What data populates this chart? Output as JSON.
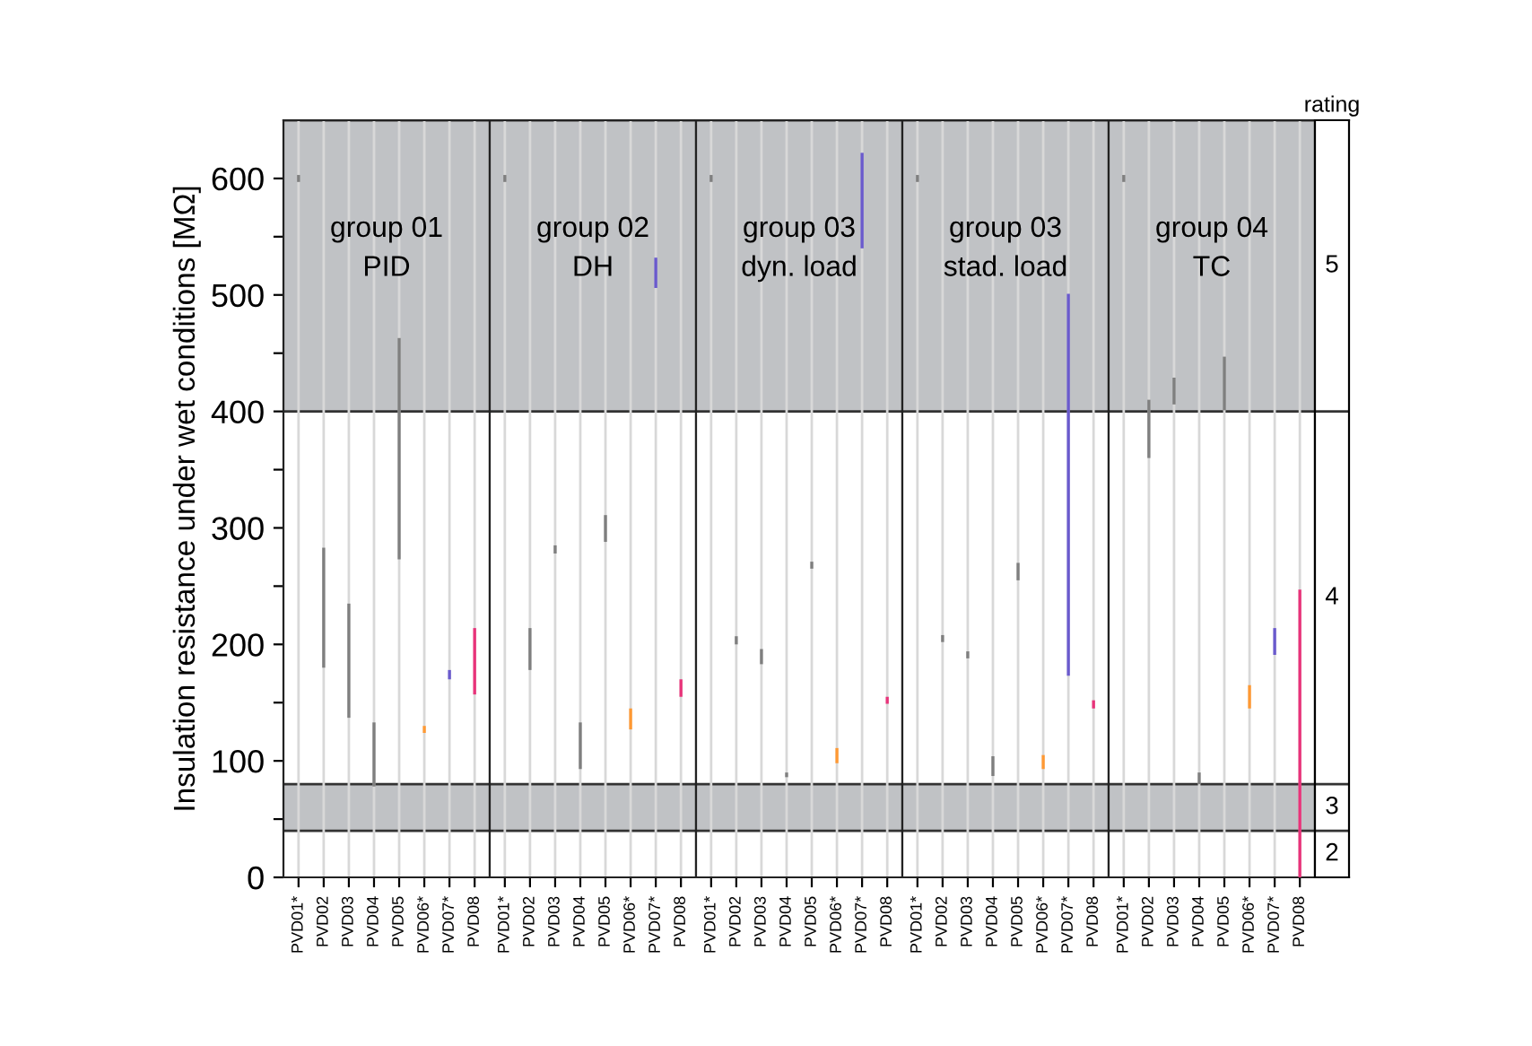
{
  "chart_data": [
    {
      "type": "bar",
      "title": "group 01\nPID",
      "ylabel": "Insulation resistance under wet conditions [MΩ]",
      "categories": [
        "PVD01*",
        "PVD02",
        "PVD03",
        "PVD04",
        "PVD05",
        "PVD06*",
        "PVD07*",
        "PVD08"
      ],
      "base": [
        597,
        180,
        137,
        78,
        273,
        124,
        170,
        157
      ],
      "values": [
        6,
        103,
        98,
        55,
        190,
        6,
        8,
        57
      ],
      "colors": [
        "#7f7f7f",
        "#7f7f7f",
        "#7f7f7f",
        "#7f7f7f",
        "#7f7f7f",
        "#ff9933",
        "#6a5acd",
        "#e8337a"
      ],
      "ylim": [
        0,
        650
      ],
      "yticks": [
        0,
        {
          "value": 50,
          "label": null
        },
        100,
        {
          "value": 150,
          "label": null
        },
        200,
        {
          "value": 250,
          "label": null
        },
        300,
        {
          "value": 350,
          "label": null
        },
        400,
        {
          "value": 450,
          "label": null
        },
        500,
        {
          "value": 550,
          "label": null
        },
        600
      ],
      "grid": "x",
      "bands": [
        {
          "axis": "y",
          "from": 40,
          "to": 80,
          "color": "#c0c2c5"
        },
        {
          "axis": "y",
          "from": 400,
          "to": 650,
          "color": "#c0c2c5"
        }
      ]
    },
    {
      "type": "bar",
      "title": "group 02\nDH",
      "categories": [
        "PVD01*",
        "PVD02",
        "PVD03",
        "PVD04",
        "PVD05",
        "PVD06*",
        "PVD07*",
        "PVD08"
      ],
      "base": [
        597,
        178,
        278,
        93,
        288,
        127,
        506,
        155
      ],
      "values": [
        6,
        36,
        7,
        40,
        23,
        18,
        26,
        15
      ],
      "colors": [
        "#7f7f7f",
        "#7f7f7f",
        "#7f7f7f",
        "#7f7f7f",
        "#7f7f7f",
        "#ff9933",
        "#6a5acd",
        "#e8337a"
      ],
      "ylim": [
        0,
        650
      ],
      "tick_labels": "x",
      "grid": "x",
      "bands": [
        {
          "axis": "y",
          "from": 40,
          "to": 80,
          "color": "#c0c2c5"
        },
        {
          "axis": "y",
          "from": 400,
          "to": 650,
          "color": "#c0c2c5"
        }
      ]
    },
    {
      "type": "bar",
      "title": "group 03\ndyn. load",
      "categories": [
        "PVD01*",
        "PVD02",
        "PVD03",
        "PVD04",
        "PVD05",
        "PVD06*",
        "PVD07*",
        "PVD08"
      ],
      "base": [
        597,
        200,
        183,
        86,
        265,
        98,
        540,
        149
      ],
      "values": [
        6,
        7,
        13,
        4,
        6,
        13,
        82,
        6
      ],
      "colors": [
        "#7f7f7f",
        "#7f7f7f",
        "#7f7f7f",
        "#7f7f7f",
        "#7f7f7f",
        "#ff9933",
        "#6a5acd",
        "#e8337a"
      ],
      "ylim": [
        0,
        650
      ],
      "tick_labels": "x",
      "grid": "x",
      "bands": [
        {
          "axis": "y",
          "from": 40,
          "to": 80,
          "color": "#c0c2c5"
        },
        {
          "axis": "y",
          "from": 400,
          "to": 650,
          "color": "#c0c2c5"
        }
      ]
    },
    {
      "type": "bar",
      "title": "group 03\nstad. load",
      "categories": [
        "PVD01*",
        "PVD02",
        "PVD03",
        "PVD04",
        "PVD05",
        "PVD06*",
        "PVD07*",
        "PVD08"
      ],
      "base": [
        597,
        202,
        188,
        87,
        255,
        93,
        173,
        145
      ],
      "values": [
        6,
        6,
        6,
        17,
        15,
        12,
        328,
        7
      ],
      "colors": [
        "#7f7f7f",
        "#7f7f7f",
        "#7f7f7f",
        "#7f7f7f",
        "#7f7f7f",
        "#ff9933",
        "#6a5acd",
        "#e8337a"
      ],
      "ylim": [
        0,
        650
      ],
      "tick_labels": "x",
      "grid": "x",
      "bands": [
        {
          "axis": "y",
          "from": 40,
          "to": 80,
          "color": "#c0c2c5"
        },
        {
          "axis": "y",
          "from": 400,
          "to": 650,
          "color": "#c0c2c5"
        }
      ]
    },
    {
      "type": "bar",
      "title": "group 04\nTC",
      "categories": [
        "PVD01*",
        "PVD02",
        "PVD03",
        "PVD04",
        "PVD05",
        "PVD06*",
        "PVD07*",
        "PVD08"
      ],
      "base": [
        597,
        360,
        406,
        80,
        401,
        145,
        191,
        0
      ],
      "values": [
        6,
        50,
        23,
        10,
        46,
        20,
        23,
        247
      ],
      "colors": [
        "#7f7f7f",
        "#7f7f7f",
        "#7f7f7f",
        "#7f7f7f",
        "#7f7f7f",
        "#ff9933",
        "#6a5acd",
        "#e8337a"
      ],
      "ylim": [
        0,
        650
      ],
      "tick_labels": "x",
      "grid": "x",
      "bands": [
        {
          "axis": "y",
          "from": 40,
          "to": 80,
          "color": "#c0c2c5"
        },
        {
          "axis": "y",
          "from": 400,
          "to": 650,
          "color": "#c0c2c5"
        }
      ]
    },
    {
      "type": "other",
      "title": "rating",
      "annotations": [
        "5",
        "4",
        "3",
        "2"
      ]
    }
  ]
}
